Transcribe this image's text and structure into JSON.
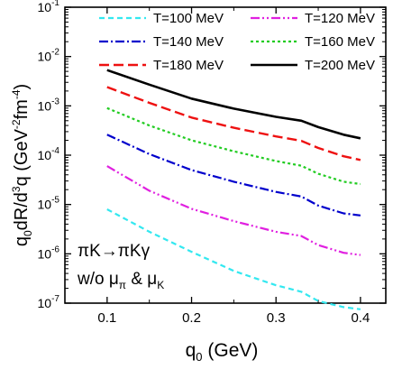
{
  "chart_data": {
    "type": "line",
    "title": "",
    "xlabel": "q",
    "xlabel_sub": "0",
    "xlabel_unit": " (GeV)",
    "ylabel_parts": {
      "a": "q",
      "a_sub": "0",
      "b": "dR/d",
      "b_sup": "3",
      "c": "q (GeV",
      "c_sup1": "-2",
      "d": "fm",
      "d_sup2": "-4",
      "e": ")"
    },
    "xlim": [
      0.05,
      0.43
    ],
    "ylim": [
      1e-07,
      0.1
    ],
    "yscale": "log",
    "xticks": [
      0.1,
      0.2,
      0.3,
      0.4
    ],
    "xtick_labels": [
      "0.1",
      "0.2",
      "0.3",
      "0.4"
    ],
    "yticks_exp": [
      -7,
      -6,
      -5,
      -4,
      -3,
      -2,
      -1
    ],
    "annotation": {
      "line1": "πK→πKγ",
      "line2_prefix": "w/o μ",
      "line2_sub1": "π",
      "line2_mid": " & μ",
      "line2_sub2": "K"
    },
    "legend_position": "top",
    "series": [
      {
        "name": "T=100 MeV",
        "color": "#33e8f0",
        "dash": "6,4",
        "width": 2.2,
        "x": [
          0.1,
          0.15,
          0.2,
          0.25,
          0.3,
          0.33,
          0.35,
          0.38,
          0.4
        ],
        "y": [
          8e-06,
          2.8e-06,
          1.1e-06,
          4.5e-07,
          2.3e-07,
          1.7e-07,
          1.1e-07,
          8.3e-08,
          7.5e-08
        ]
      },
      {
        "name": "T=120 MeV",
        "color": "#e020e0",
        "dash": "10,3,2,3,2,3",
        "width": 2.2,
        "x": [
          0.1,
          0.15,
          0.2,
          0.25,
          0.3,
          0.33,
          0.35,
          0.38,
          0.4
        ],
        "y": [
          6e-05,
          1.9e-05,
          8.2e-06,
          4.6e-06,
          2.8e-06,
          2.3e-06,
          1.5e-06,
          1.05e-06,
          9.5e-07
        ]
      },
      {
        "name": "T=140 MeV",
        "color": "#0000cc",
        "dash": "10,3,2,3",
        "width": 2.2,
        "x": [
          0.1,
          0.15,
          0.2,
          0.25,
          0.3,
          0.33,
          0.35,
          0.38,
          0.4
        ],
        "y": [
          0.00026,
          0.000105,
          5e-05,
          2.9e-05,
          1.8e-05,
          1.45e-05,
          9.5e-06,
          6.6e-06,
          6e-06
        ]
      },
      {
        "name": "T=160 MeV",
        "color": "#22cc22",
        "dash": "3,3",
        "width": 2.2,
        "x": [
          0.1,
          0.15,
          0.2,
          0.25,
          0.3,
          0.33,
          0.35,
          0.38,
          0.4
        ],
        "y": [
          0.0009,
          0.0004,
          0.0002,
          0.00012,
          7.6e-05,
          6.1e-05,
          4.2e-05,
          2.9e-05,
          2.6e-05
        ]
      },
      {
        "name": "T=180 MeV",
        "color": "#ee1111",
        "dash": "11,5",
        "width": 2.4,
        "x": [
          0.1,
          0.15,
          0.2,
          0.25,
          0.3,
          0.33,
          0.35,
          0.38,
          0.4
        ],
        "y": [
          0.0024,
          0.00115,
          0.00058,
          0.00036,
          0.00024,
          0.000195,
          0.00014,
          9.5e-05,
          8e-05
        ]
      },
      {
        "name": "T=200 MeV",
        "color": "#000000",
        "dash": "",
        "width": 2.6,
        "x": [
          0.1,
          0.15,
          0.2,
          0.25,
          0.3,
          0.33,
          0.35,
          0.38,
          0.4
        ],
        "y": [
          0.0053,
          0.0027,
          0.0014,
          0.00088,
          0.0006,
          0.0005,
          0.00037,
          0.00026,
          0.00022
        ]
      }
    ]
  }
}
